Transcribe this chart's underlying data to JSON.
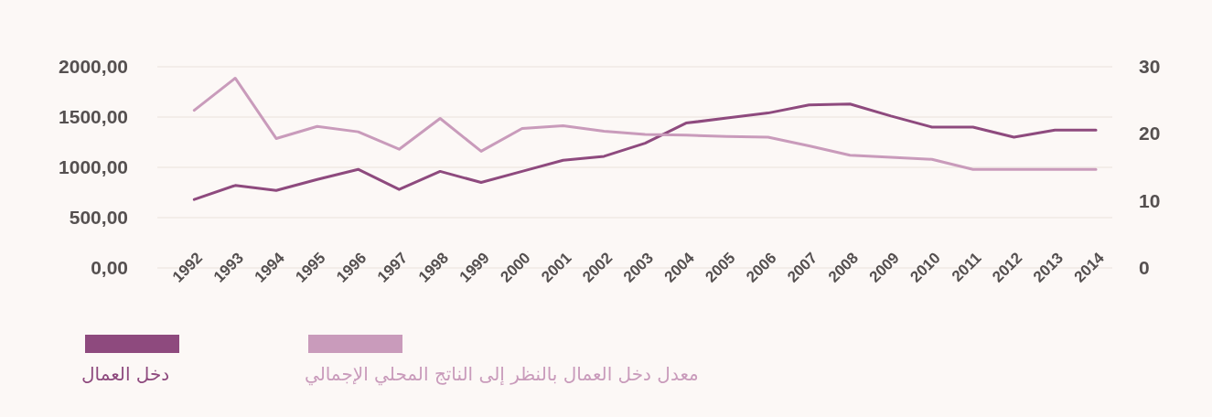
{
  "chart_data": {
    "type": "line",
    "categories": [
      "1992",
      "1993",
      "1994",
      "1995",
      "1996",
      "1997",
      "1998",
      "1999",
      "2000",
      "2001",
      "2002",
      "2003",
      "2004",
      "2005",
      "2006",
      "2007",
      "2008",
      "2009",
      "2010",
      "2011",
      "2012",
      "2013",
      "2014"
    ],
    "series": [
      {
        "name": "دخل العمال",
        "color": "#8e4a7e",
        "values": [
          680,
          820,
          770,
          880,
          980,
          780,
          960,
          850,
          960,
          1070,
          1110,
          1240,
          1440,
          1490,
          1540,
          1620,
          1630,
          1510,
          1400,
          1400,
          1300,
          1370,
          1370
        ]
      },
      {
        "name": "معدل دخل العمال بالنظر إلى الناتج المحلي الإجمالي",
        "color": "#c99bbb",
        "axis": "y2",
        "values": [
          23.5,
          28.3,
          19.3,
          21.1,
          20.3,
          17.7,
          22.3,
          17.4,
          20.8,
          21.2,
          20.4,
          19.9,
          19.8,
          19.6,
          19.5,
          18.2,
          16.8,
          16.5,
          16.2,
          14.7,
          14.7,
          14.7,
          14.7
        ]
      }
    ],
    "ylim": [
      0,
      2000
    ],
    "yticks": [
      {
        "value": 0,
        "label": "0,00"
      },
      {
        "value": 500,
        "label": "500,00"
      },
      {
        "value": 1000,
        "label": "1000,00"
      },
      {
        "value": 1500,
        "label": "1500,00"
      },
      {
        "value": 2000,
        "label": "2000,00"
      }
    ],
    "y2lim": [
      0,
      30
    ],
    "y2ticks": [
      0,
      10,
      20,
      30
    ],
    "grid": "y",
    "legend": "bottom left",
    "marker": "none",
    "line_style": "solid"
  }
}
